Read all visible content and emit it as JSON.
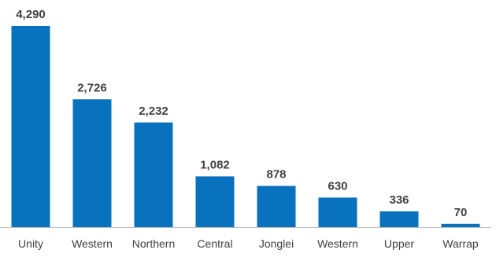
{
  "chart_data": {
    "type": "bar",
    "categories": [
      "Unity",
      "Western",
      "Northern",
      "Central",
      "Jonglei",
      "Western",
      "Upper",
      "Warrap"
    ],
    "values": [
      4290,
      2726,
      2232,
      1082,
      878,
      630,
      336,
      70
    ],
    "value_labels": [
      "4,290",
      "2,726",
      "2,232",
      "1,082",
      "878",
      "630",
      "336",
      "70"
    ],
    "title": "",
    "xlabel": "",
    "ylabel": "",
    "ylim": [
      0,
      4290
    ],
    "grid": false,
    "legend": "none",
    "bar_color": "#0872BE",
    "axis_color": "#BFBFBF",
    "label_color": "#404040"
  }
}
